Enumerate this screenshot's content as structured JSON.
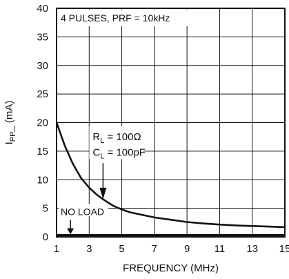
{
  "chart_data": {
    "type": "line",
    "title": "",
    "xlabel": "FREQUENCY (MHz)",
    "ylabel": "I",
    "ylabel_sub": "PP",
    "ylabel_rest": "_ (mA)",
    "xlim": [
      1,
      15
    ],
    "ylim": [
      0,
      40
    ],
    "x_ticks": [
      1,
      3,
      5,
      7,
      9,
      11,
      13,
      15
    ],
    "y_ticks": [
      0,
      5,
      10,
      15,
      20,
      25,
      30,
      35,
      40
    ],
    "grid": true,
    "legend": "none",
    "annotations": {
      "condition": "4 PULSES, PRF = 10kHz",
      "rl_main": "R",
      "rl_sub": "L",
      "rl_rest": " = 100Ω",
      "cl_main": "C",
      "cl_sub": "L",
      "cl_rest": " = 100pF",
      "no_load": "NO LOAD"
    },
    "series": [
      {
        "label_ref": "rl_cl",
        "x": [
          1,
          1.5,
          2,
          2.5,
          3,
          3.5,
          4,
          4.5,
          5,
          5.5,
          6,
          7,
          8,
          9,
          10,
          11,
          12,
          13,
          14,
          15
        ],
        "values": [
          20,
          16,
          12.8,
          10.3,
          8.6,
          7.3,
          6.3,
          5.4,
          4.8,
          4.3,
          4.0,
          3.4,
          3.0,
          2.6,
          2.35,
          2.15,
          2.0,
          1.9,
          1.8,
          1.7
        ]
      },
      {
        "label_ref": "no_load",
        "x": [
          1,
          15
        ],
        "values": [
          0.3,
          0.3
        ]
      }
    ]
  }
}
